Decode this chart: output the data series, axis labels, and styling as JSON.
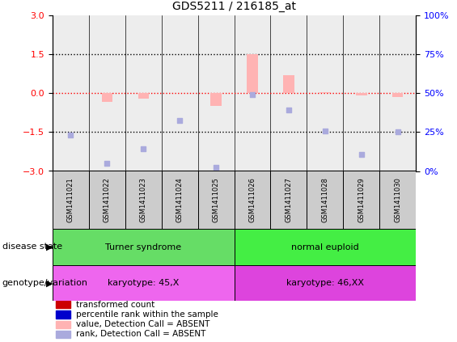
{
  "title": "GDS5211 / 216185_at",
  "samples": [
    "GSM1411021",
    "GSM1411022",
    "GSM1411023",
    "GSM1411024",
    "GSM1411025",
    "GSM1411026",
    "GSM1411027",
    "GSM1411028",
    "GSM1411029",
    "GSM1411030"
  ],
  "transformed_count_absent": [
    0.0,
    -0.35,
    -0.2,
    0.0,
    -0.5,
    1.5,
    0.7,
    0.05,
    -0.1,
    -0.15
  ],
  "rank_absent_vals": [
    -1.6,
    -2.7,
    -2.15,
    -1.05,
    -2.85,
    -0.05,
    -0.65,
    -1.45,
    -2.35,
    -1.5
  ],
  "ylim_left": [
    -3,
    3
  ],
  "ylim_right": [
    0,
    100
  ],
  "yticks_left": [
    -3,
    -1.5,
    0,
    1.5,
    3
  ],
  "yticks_right": [
    0,
    25,
    50,
    75,
    100
  ],
  "yticklabels_right": [
    "0%",
    "25%",
    "50%",
    "75%",
    "100%"
  ],
  "hlines_dotted": [
    -1.5,
    1.5
  ],
  "hline_red": 0,
  "disease_state_groups": [
    {
      "label": "Turner syndrome",
      "start": 0,
      "end": 4,
      "color": "#66dd66"
    },
    {
      "label": "normal euploid",
      "start": 5,
      "end": 9,
      "color": "#44ee44"
    }
  ],
  "genotype_groups": [
    {
      "label": "karyotype: 45,X",
      "start": 0,
      "end": 4,
      "color": "#ee66ee"
    },
    {
      "label": "karyotype: 46,XX",
      "start": 5,
      "end": 9,
      "color": "#dd44dd"
    }
  ],
  "bar_color_absent": "#ffb3b3",
  "rank_color_absent": "#aaaadd",
  "legend_items": [
    {
      "label": "transformed count",
      "color": "#cc0000"
    },
    {
      "label": "percentile rank within the sample",
      "color": "#0000cc"
    },
    {
      "label": "value, Detection Call = ABSENT",
      "color": "#ffb3b3"
    },
    {
      "label": "rank, Detection Call = ABSENT",
      "color": "#aaaadd"
    }
  ],
  "left_label_disease": "disease state",
  "left_label_genotype": "genotype/variation",
  "sample_col_color": "#cccccc"
}
